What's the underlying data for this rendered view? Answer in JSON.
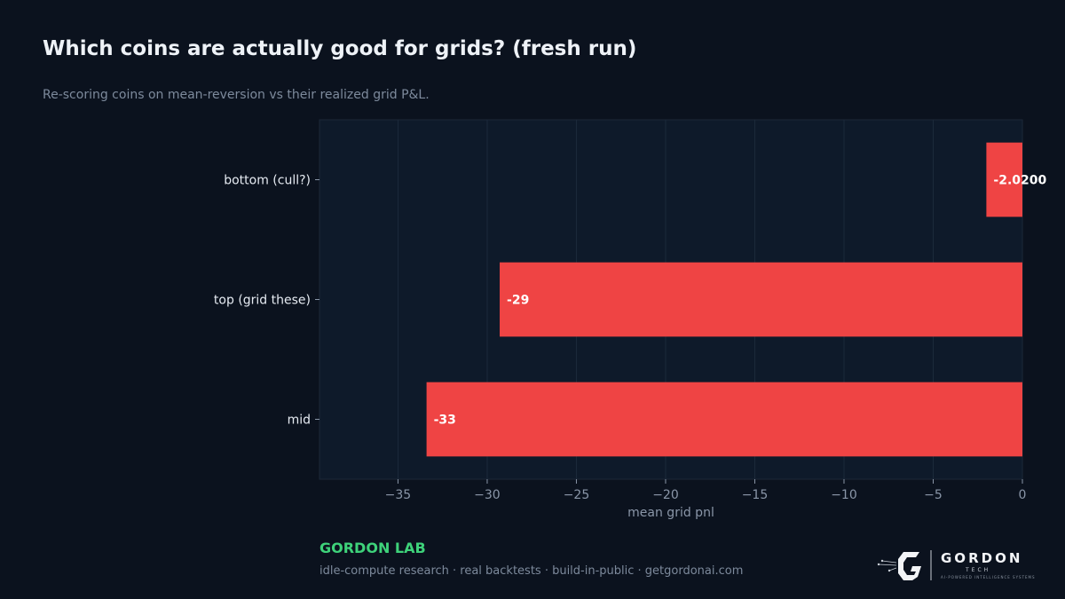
{
  "header": {
    "title": "Which coins are actually good for grids? (fresh run)",
    "subtitle": "Re-scoring coins on mean-reversion vs their realized grid P&L."
  },
  "footer": {
    "brand": "GORDON LAB",
    "tagline": "idle-compute research · real backtests · build-in-public · getgordonai.com",
    "logo_word": "GORDON",
    "logo_sub": "TECH",
    "logo_fine": "AI-POWERED INTELLIGENCE SYSTEMS"
  },
  "colors": {
    "background": "#0b121e",
    "plot_background": "#0e1a2a",
    "bar": "#ef4444",
    "brand": "#3ed27a"
  },
  "chart_data": {
    "type": "bar",
    "orientation": "horizontal",
    "categories": [
      "bottom (cull?)",
      "top (grid these)",
      "mid"
    ],
    "values": [
      -2.02,
      -29.3,
      -33.4
    ],
    "data_labels": [
      "-2.0200",
      "-29",
      "-33"
    ],
    "xlabel": "mean grid pnl",
    "ylabel": "",
    "xlim": [
      -39.4,
      0
    ],
    "xticks": [
      -35,
      -30,
      -25,
      -20,
      -15,
      -10,
      -5,
      0
    ],
    "xtick_labels": [
      "−35",
      "−30",
      "−25",
      "−20",
      "−15",
      "−10",
      "−5",
      "0"
    ],
    "grid": true
  }
}
